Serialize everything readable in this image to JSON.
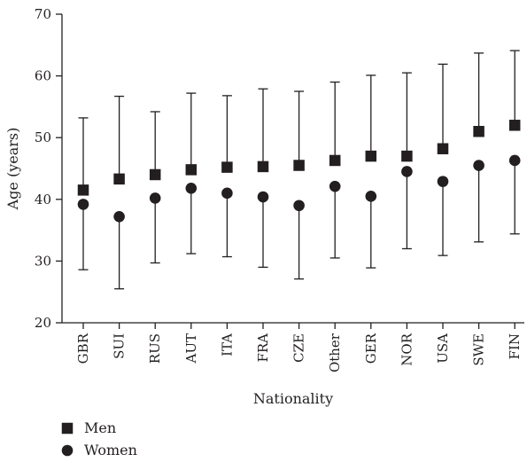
{
  "chart_data": {
    "type": "scatter",
    "xlabel": "Nationality",
    "ylabel": "Age (years)",
    "ylim": [
      20,
      70
    ],
    "yticks": [
      "20",
      "30",
      "40",
      "50",
      "60",
      "70"
    ],
    "categories": [
      "GBR",
      "SUI",
      "RUS",
      "AUT",
      "ITA",
      "FRA",
      "CZE",
      "Other",
      "GER",
      "NOR",
      "USA",
      "SWE",
      "FIN"
    ],
    "series": [
      {
        "name": "Men",
        "marker": "square",
        "values": [
          41.5,
          43.3,
          44.0,
          44.8,
          45.2,
          45.3,
          45.5,
          46.3,
          47.0,
          47.0,
          48.2,
          51.0,
          52.0
        ],
        "upper": [
          53.2,
          56.7,
          54.2,
          57.2,
          56.8,
          57.9,
          57.5,
          59.0,
          60.1,
          60.5,
          61.9,
          63.7,
          64.1
        ]
      },
      {
        "name": "Women",
        "marker": "circle",
        "values": [
          39.2,
          37.2,
          40.2,
          41.8,
          41.0,
          40.4,
          39.0,
          42.1,
          40.5,
          44.5,
          42.9,
          45.5,
          46.3
        ],
        "lower": [
          28.6,
          25.5,
          29.7,
          31.2,
          30.7,
          29.0,
          27.1,
          30.5,
          28.9,
          32.0,
          30.9,
          33.1,
          34.4
        ]
      }
    ],
    "legend_position": "bottom-left",
    "colors": {
      "ink": "#231f20"
    }
  }
}
